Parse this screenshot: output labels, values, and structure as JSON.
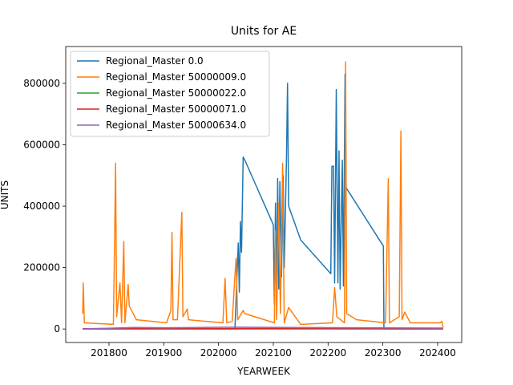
{
  "chart_data": {
    "type": "line",
    "title": "Units for AE",
    "x_label": "YEARWEEK",
    "y_label": "UNITS",
    "xlim": [
      201721,
      202444
    ],
    "ylim": [
      -44000,
      920000
    ],
    "xticks": [
      201800,
      201900,
      202000,
      202100,
      202200,
      202300,
      202400
    ],
    "yticks": [
      0,
      200000,
      400000,
      600000,
      800000
    ],
    "legend": "upper left",
    "series": [
      {
        "name": "Regional_Master 0.0",
        "color": "#1f77b4",
        "x": [
          201752,
          202030,
          202036,
          202038,
          202040,
          202042,
          202045,
          202048,
          202100,
          202102,
          202104,
          202106,
          202108,
          202110,
          202112,
          202115,
          202118,
          202120,
          202124,
          202126,
          202128,
          202150,
          202205,
          202207,
          202210,
          202212,
          202215,
          202218,
          202220,
          202222,
          202226,
          202228,
          202231,
          202233,
          202301,
          202302,
          202410
        ],
        "values": [
          0,
          0,
          280000,
          120000,
          350000,
          250000,
          560000,
          550000,
          340000,
          80000,
          410000,
          100000,
          490000,
          130000,
          480000,
          170000,
          500000,
          200000,
          550000,
          800000,
          400000,
          290000,
          180000,
          530000,
          530000,
          150000,
          780000,
          150000,
          580000,
          130000,
          550000,
          140000,
          830000,
          460000,
          270000,
          0,
          0
        ]
      },
      {
        "name": "Regional_Master 50000009.0",
        "color": "#ff7f0e",
        "x": [
          201752,
          201753,
          201755,
          201808,
          201810,
          201812,
          201814,
          201820,
          201823,
          201827,
          201829,
          201835,
          201837,
          201850,
          201905,
          201913,
          201915,
          201917,
          201925,
          201933,
          201935,
          201943,
          201945,
          202008,
          202012,
          202015,
          202025,
          202030,
          202032,
          202035,
          202045,
          202048,
          202102,
          202104,
          202106,
          202110,
          202113,
          202117,
          202120,
          202128,
          202150,
          202208,
          202212,
          202216,
          202230,
          202232,
          202234,
          202252,
          202305,
          202310,
          202312,
          202330,
          202333,
          202335,
          202340,
          202350,
          202405,
          202408,
          202410
        ],
        "values": [
          50000,
          150000,
          20000,
          15000,
          260000,
          540000,
          40000,
          150000,
          20000,
          285000,
          20000,
          145000,
          75000,
          30000,
          20000,
          60000,
          315000,
          30000,
          30000,
          380000,
          40000,
          65000,
          30000,
          20000,
          165000,
          20000,
          25000,
          175000,
          230000,
          30000,
          60000,
          50000,
          20000,
          320000,
          30000,
          410000,
          50000,
          540000,
          20000,
          70000,
          15000,
          20000,
          135000,
          40000,
          20000,
          870000,
          50000,
          30000,
          20000,
          490000,
          20000,
          40000,
          645000,
          30000,
          55000,
          20000,
          20000,
          25000,
          5000
        ]
      },
      {
        "name": "Regional_Master 50000022.0",
        "color": "#2ca02c",
        "x": [
          201752,
          202100,
          202410
        ],
        "values": [
          0,
          0,
          0
        ]
      },
      {
        "name": "Regional_Master 50000071.0",
        "color": "#d62728",
        "x": [
          201752,
          201850,
          202000,
          202150,
          202300,
          202410
        ],
        "values": [
          1000,
          2000,
          1500,
          2500,
          1500,
          1000
        ]
      },
      {
        "name": "Regional_Master 50000634.0",
        "color": "#9467bd",
        "x": [
          201752,
          201845,
          201900,
          202030,
          202120,
          202250,
          202410
        ],
        "values": [
          0,
          5000,
          4000,
          6000,
          5000,
          4000,
          3000
        ]
      }
    ]
  }
}
